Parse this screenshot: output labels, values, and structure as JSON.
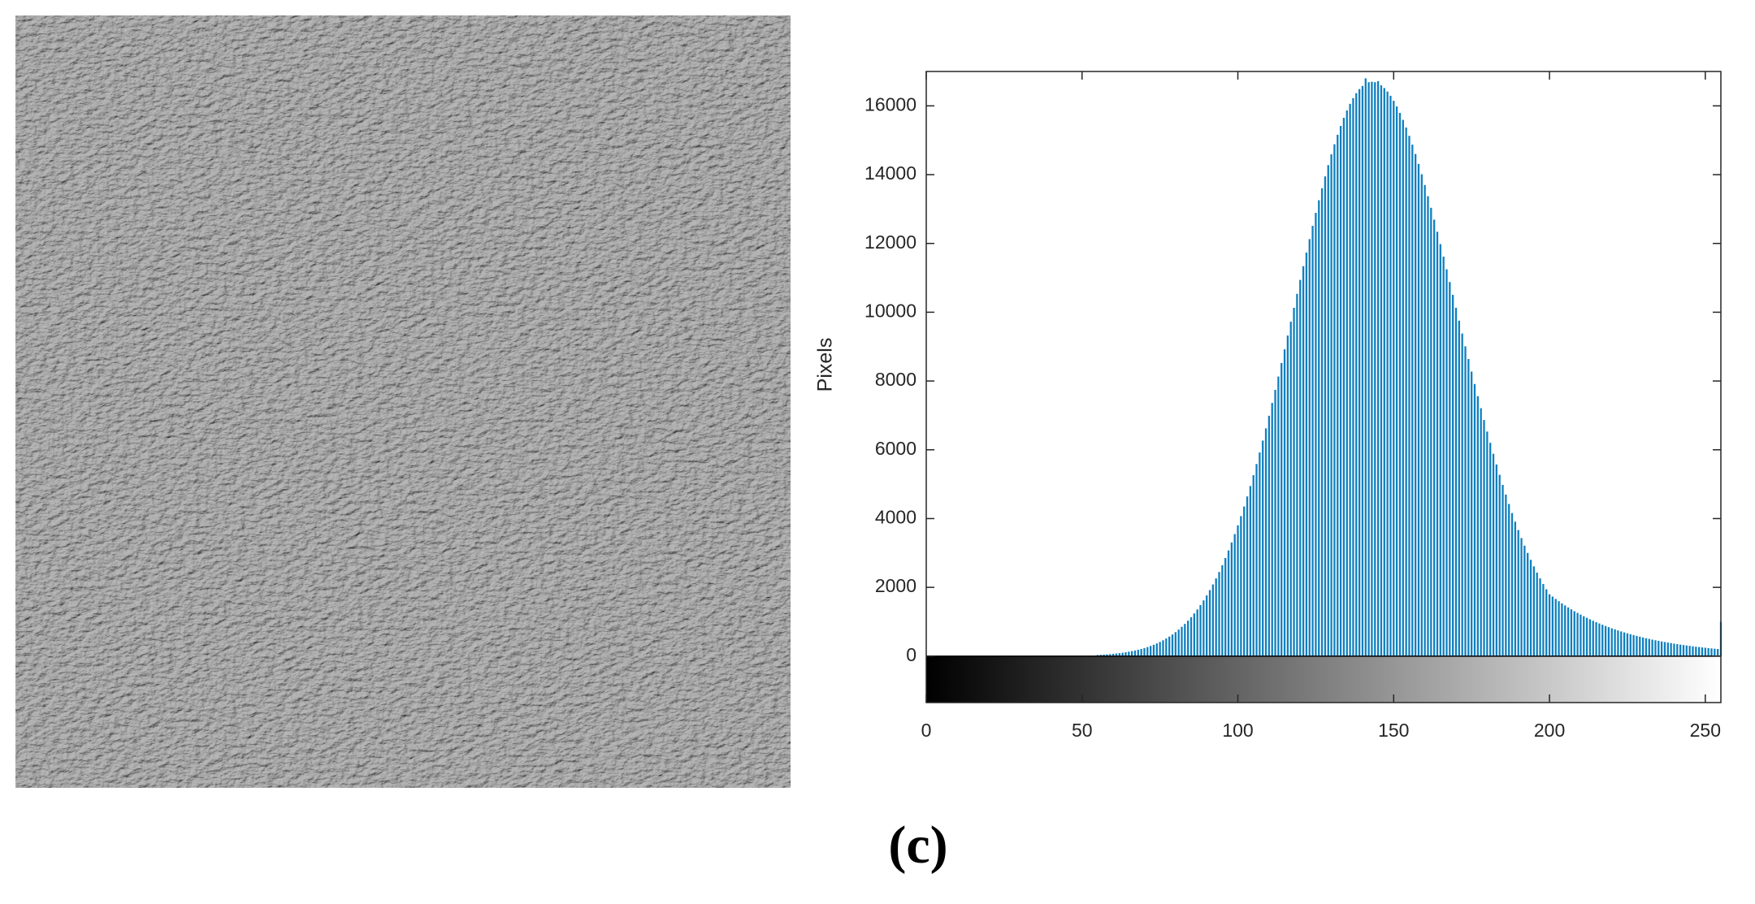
{
  "chart_data": {
    "type": "bar",
    "ylabel": "Pixels",
    "caption": "(c)",
    "color": "#0f7fbf",
    "x": [
      0,
      1,
      2,
      3,
      4,
      5,
      6,
      7,
      8,
      9,
      10,
      11,
      12,
      13,
      14,
      15,
      16,
      17,
      18,
      19,
      20,
      21,
      22,
      23,
      24,
      25,
      26,
      27,
      28,
      29,
      30,
      31,
      32,
      33,
      34,
      35,
      36,
      37,
      38,
      39,
      40,
      41,
      42,
      43,
      44,
      45,
      46,
      47,
      48,
      49,
      50,
      51,
      52,
      53,
      54,
      55,
      56,
      57,
      58,
      59,
      60,
      61,
      62,
      63,
      64,
      65,
      66,
      67,
      68,
      69,
      70,
      71,
      72,
      73,
      74,
      75,
      76,
      77,
      78,
      79,
      80,
      81,
      82,
      83,
      84,
      85,
      86,
      87,
      88,
      89,
      90,
      91,
      92,
      93,
      94,
      95,
      96,
      97,
      98,
      99,
      100,
      101,
      102,
      103,
      104,
      105,
      106,
      107,
      108,
      109,
      110,
      111,
      112,
      113,
      114,
      115,
      116,
      117,
      118,
      119,
      120,
      121,
      122,
      123,
      124,
      125,
      126,
      127,
      128,
      129,
      130,
      131,
      132,
      133,
      134,
      135,
      136,
      137,
      138,
      139,
      140,
      141,
      142,
      143,
      144,
      145,
      146,
      147,
      148,
      149,
      150,
      151,
      152,
      153,
      154,
      155,
      156,
      157,
      158,
      159,
      160,
      161,
      162,
      163,
      164,
      165,
      166,
      167,
      168,
      169,
      170,
      171,
      172,
      173,
      174,
      175,
      176,
      177,
      178,
      179,
      180,
      181,
      182,
      183,
      184,
      185,
      186,
      187,
      188,
      189,
      190,
      191,
      192,
      193,
      194,
      195,
      196,
      197,
      198,
      199,
      200,
      201,
      202,
      203,
      204,
      205,
      206,
      207,
      208,
      209,
      210,
      211,
      212,
      213,
      214,
      215,
      216,
      217,
      218,
      219,
      220,
      221,
      222,
      223,
      224,
      225,
      226,
      227,
      228,
      229,
      230,
      231,
      232,
      233,
      234,
      235,
      236,
      237,
      238,
      239,
      240,
      241,
      242,
      243,
      244,
      245,
      246,
      247,
      248,
      249,
      250,
      251,
      252,
      253,
      254,
      255
    ],
    "values": [
      0,
      0,
      0,
      0,
      0,
      0,
      0,
      0,
      0,
      0,
      0,
      0,
      0,
      0,
      0,
      0,
      0,
      0,
      0,
      0,
      0,
      0,
      0,
      0,
      0,
      0,
      0,
      0,
      0,
      0,
      0,
      0,
      0,
      0,
      0,
      0,
      0,
      0,
      0,
      0,
      0,
      0,
      0,
      0,
      0,
      0,
      0,
      0,
      0,
      0,
      0,
      0,
      0,
      0,
      0,
      34,
      39,
      45,
      52,
      59,
      68,
      77,
      88,
      100,
      113,
      129,
      146,
      164,
      185,
      209,
      235,
      264,
      296,
      331,
      370,
      413,
      461,
      513,
      568,
      630,
      698,
      772,
      852,
      937,
      1031,
      1132,
      1241,
      1358,
      1484,
      1620,
      1765,
      1921,
      2085,
      2260,
      2446,
      2644,
      2853,
      3073,
      3305,
      3549,
      3804,
      4071,
      4351,
      4643,
      4946,
      5261,
      5586,
      5922,
      6268,
      6623,
      6989,
      7362,
      7742,
      8130,
      8522,
      8921,
      9322,
      9723,
      10129,
      10534,
      10939,
      11339,
      11735,
      12126,
      12512,
      12889,
      13255,
      13605,
      13949,
      14277,
      14591,
      14883,
      15160,
      15416,
      15653,
      15867,
      16059,
      16226,
      16369,
      16488,
      16580,
      16800,
      16687,
      16700,
      16689,
      16720,
      16597,
      16518,
      16416,
      16293,
      16148,
      15983,
      15797,
      15593,
      15370,
      15129,
      14872,
      14600,
      14312,
      14011,
      13698,
      13373,
      13037,
      12692,
      12339,
      11980,
      11617,
      11248,
      10877,
      10504,
      10129,
      9754,
      9380,
      9008,
      8639,
      8274,
      7913,
      7558,
      7209,
      6866,
      6530,
      6203,
      5884,
      5573,
      5272,
      4980,
      4697,
      4424,
      4161,
      3909,
      3666,
      3434,
      3213,
      3001,
      2801,
      2610,
      2429,
      2260,
      2097,
      1944,
      1798,
      1731,
      1663,
      1598,
      1535,
      1475,
      1417,
      1362,
      1308,
      1257,
      1208,
      1160,
      1115,
      1071,
      1029,
      989,
      950,
      913,
      877,
      843,
      810,
      778,
      747,
      718,
      690,
      663,
      637,
      612,
      588,
      565,
      543,
      521,
      501,
      481,
      462,
      444,
      427,
      410,
      394,
      379,
      364,
      349,
      336,
      323,
      310,
      298,
      286,
      275,
      264,
      254,
      244,
      234,
      225,
      216,
      208,
      1000
    ],
    "xlim": [
      0,
      255
    ],
    "ylim": [
      -1350,
      17000
    ],
    "xticks": [
      0,
      50,
      100,
      150,
      200,
      250
    ],
    "yticks": [
      0,
      2000,
      4000,
      6000,
      8000,
      10000,
      12000,
      14000,
      16000
    ]
  }
}
